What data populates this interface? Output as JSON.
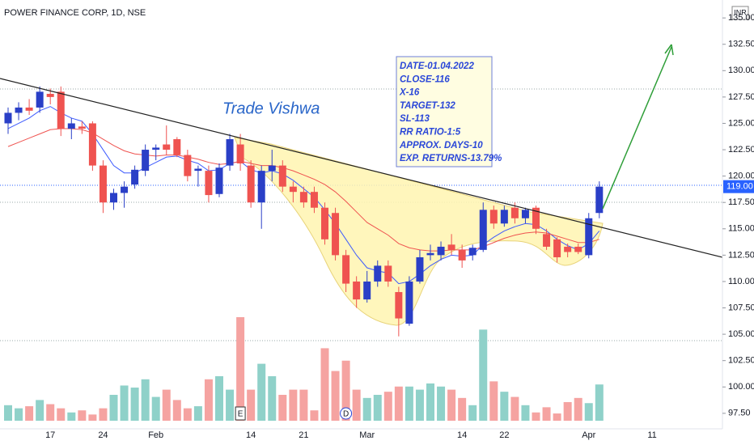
{
  "chart_data": {
    "type": "candlestick",
    "title": "POWER FINANCE CORP, 1D, NSE",
    "currency": "INR",
    "watermark": "Trade Vishwa",
    "note_lines": [
      "DATE-01.04.2022",
      "CLOSE-116",
      "X-16",
      "TARGET-132",
      "SL-113",
      "RR RATIO-1:5",
      "APPROX. DAYS-10",
      "EXP. RETURNS-13.79%"
    ],
    "categories": [
      null,
      null,
      null,
      null,
      "17",
      null,
      null,
      null,
      null,
      "24",
      null,
      null,
      null,
      null,
      "Feb",
      null,
      null,
      null,
      null,
      null,
      null,
      null,
      null,
      "14",
      null,
      null,
      null,
      null,
      "21",
      null,
      null,
      null,
      null,
      null,
      "Mar",
      null,
      null,
      null,
      null,
      null,
      null,
      null,
      null,
      "14",
      null,
      null,
      null,
      "22",
      null,
      null,
      null,
      null,
      null,
      null,
      null,
      "Apr",
      null,
      null,
      null,
      null,
      null,
      "11"
    ],
    "events": [
      null,
      null,
      null,
      null,
      null,
      null,
      null,
      null,
      null,
      null,
      null,
      null,
      null,
      null,
      null,
      null,
      null,
      null,
      null,
      null,
      null,
      null,
      "E",
      null,
      null,
      null,
      null,
      null,
      null,
      null,
      null,
      null,
      "D",
      null,
      null,
      null,
      null,
      null,
      null,
      null,
      null,
      null,
      null,
      null,
      null,
      null,
      null,
      null,
      null,
      null,
      null,
      null,
      null,
      null,
      null,
      null,
      null,
      null,
      null,
      null,
      null,
      null
    ],
    "open": [
      125.0,
      126.0,
      126.5,
      126.5,
      127.8,
      128.0,
      124.5,
      124.7,
      125.0,
      121.0,
      117.5,
      118.4,
      119.2,
      120.5,
      122.5,
      123.0,
      123.5,
      122.0,
      120.5,
      120.5,
      118.3,
      121.0,
      123.0,
      121.0,
      117.5,
      120.5,
      121.0,
      119.0,
      118.5,
      118.5,
      117.0,
      116.5,
      112.5,
      110.0,
      108.3,
      110.0,
      111.5,
      109.0,
      106.0,
      110.0,
      112.5,
      112.5,
      113.5,
      113.0,
      112.5,
      113.0,
      116.8,
      115.5,
      117.0,
      116.0,
      117.0,
      114.5,
      114.0,
      113.3,
      113.3,
      112.5,
      116.5,
      null,
      null,
      null,
      null,
      null
    ],
    "high": [
      126.5,
      127.0,
      127.3,
      128.5,
      128.3,
      128.5,
      125.5,
      125.2,
      125.2,
      121.5,
      118.8,
      119.5,
      121.0,
      123.0,
      123.0,
      124.8,
      123.7,
      122.5,
      121.0,
      121.0,
      121.2,
      124.0,
      124.0,
      121.5,
      121.0,
      122.5,
      121.5,
      119.5,
      119.0,
      119.0,
      117.5,
      117.0,
      113.0,
      110.5,
      111.0,
      112.0,
      112.0,
      109.5,
      110.5,
      113.0,
      113.5,
      113.8,
      114.5,
      113.5,
      113.5,
      117.5,
      117.2,
      117.2,
      117.5,
      117.0,
      117.2,
      115.0,
      114.2,
      113.6,
      113.6,
      116.5,
      119.5,
      null,
      null,
      null,
      null,
      null
    ],
    "low": [
      124.0,
      125.3,
      125.8,
      126.0,
      126.8,
      123.8,
      123.5,
      124.0,
      120.5,
      116.5,
      116.8,
      117.0,
      118.8,
      120.0,
      121.5,
      122.0,
      121.8,
      119.5,
      119.0,
      117.5,
      118.0,
      120.5,
      120.5,
      117.0,
      115.0,
      119.5,
      118.5,
      117.5,
      117.0,
      116.5,
      113.5,
      112.0,
      109.0,
      107.5,
      108.0,
      109.5,
      109.5,
      104.8,
      105.8,
      109.8,
      112.0,
      112.0,
      112.5,
      111.3,
      112.0,
      112.8,
      115.0,
      115.2,
      115.5,
      115.5,
      114.5,
      113.0,
      111.8,
      112.3,
      112.6,
      112.2,
      116.0,
      null,
      null,
      null,
      null,
      null
    ],
    "close": [
      126.0,
      126.5,
      126.2,
      128.0,
      127.5,
      124.5,
      125.0,
      124.5,
      121.0,
      117.5,
      118.4,
      119.0,
      120.6,
      122.5,
      122.7,
      122.5,
      122.0,
      120.0,
      120.7,
      118.2,
      120.8,
      123.5,
      121.2,
      117.5,
      120.5,
      121.0,
      119.0,
      118.5,
      117.5,
      117.0,
      114.0,
      112.5,
      109.8,
      108.3,
      110.0,
      111.5,
      110.0,
      106.5,
      110.0,
      112.3,
      112.7,
      113.3,
      113.0,
      112.0,
      113.2,
      116.8,
      115.5,
      116.8,
      116.0,
      116.8,
      115.0,
      113.3,
      112.3,
      112.8,
      112.8,
      116.0,
      119.0,
      null,
      null,
      null,
      null,
      null
    ],
    "volume": [
      15,
      12,
      14,
      20,
      16,
      12,
      8,
      10,
      6,
      12,
      25,
      34,
      32,
      40,
      23,
      30,
      20,
      12,
      14,
      40,
      43,
      30,
      100,
      30,
      55,
      43,
      25,
      30,
      30,
      10,
      70,
      48,
      58,
      30,
      22,
      25,
      28,
      33,
      33,
      30,
      36,
      33,
      30,
      22,
      15,
      88,
      38,
      28,
      23,
      15,
      8,
      13,
      7,
      18,
      22,
      17,
      35,
      null,
      null,
      null,
      null,
      null
    ],
    "volume_lim": [
      0,
      100
    ],
    "moving_averages": [
      {
        "color": "#3d5afe",
        "values": [
          124.5,
          125.0,
          125.5,
          126.2,
          126.6,
          126.0,
          125.5,
          125.2,
          124.0,
          122.5,
          121.0,
          120.3,
          120.3,
          120.8,
          121.3,
          121.8,
          121.9,
          121.5,
          121.2,
          120.5,
          120.6,
          121.2,
          121.4,
          120.6,
          120.3,
          120.5,
          120.2,
          119.6,
          118.8,
          118.0,
          116.8,
          115.5,
          114.0,
          112.5,
          111.3,
          111.0,
          110.8,
          109.8,
          110.0,
          110.7,
          111.5,
          112.1,
          112.5,
          112.4,
          112.5,
          113.5,
          114.2,
          114.8,
          115.2,
          115.5,
          115.4,
          114.8,
          114.0,
          113.4,
          113.0,
          113.6,
          114.8,
          null,
          null,
          null,
          null,
          null
        ]
      },
      {
        "color": "#ef5350",
        "values": [
          122.8,
          123.2,
          123.6,
          124.0,
          124.4,
          124.5,
          124.5,
          124.4,
          124.1,
          123.5,
          122.9,
          122.4,
          122.1,
          122.0,
          121.9,
          122.0,
          122.0,
          121.8,
          121.6,
          121.3,
          121.1,
          121.2,
          121.4,
          121.2,
          121.0,
          121.0,
          120.8,
          120.5,
          120.1,
          119.7,
          119.2,
          118.5,
          117.6,
          116.6,
          115.6,
          115.0,
          114.4,
          113.6,
          113.2,
          113.0,
          112.9,
          112.9,
          113.0,
          113.0,
          113.0,
          113.3,
          113.7,
          114.1,
          114.4,
          114.6,
          114.7,
          114.6,
          114.3,
          114.0,
          113.7,
          113.7,
          114.0,
          null,
          null,
          null,
          null,
          null
        ]
      }
    ],
    "up_color": "#2a3fc7",
    "down_color": "#ef5350",
    "volume_up_color": "#8fd1c9",
    "volume_down_color": "#f5a3a1",
    "last_price": 119,
    "last_price_label": "119.00",
    "ylim": [
      96.03,
      136.7
    ],
    "yticks": [
      {
        "value": 97.5,
        "label": "97.50"
      },
      {
        "value": 100,
        "label": "100.00"
      },
      {
        "value": 102.5,
        "label": "102.50"
      },
      {
        "value": 105,
        "label": "105.00"
      },
      {
        "value": 107.5,
        "label": "107.50"
      },
      {
        "value": 110,
        "label": "110.00"
      },
      {
        "value": 112.5,
        "label": "112.50"
      },
      {
        "value": 115,
        "label": "115.00"
      },
      {
        "value": 117.5,
        "label": "117.50"
      },
      {
        "value": 120,
        "label": "120.00"
      },
      {
        "value": 122.5,
        "label": "122.50"
      },
      {
        "value": 125,
        "label": "125.00"
      },
      {
        "value": 127.5,
        "label": "127.50"
      },
      {
        "value": 130,
        "label": "130.00"
      },
      {
        "value": 132.5,
        "label": "132.50"
      },
      {
        "value": 135,
        "label": "135.00"
      }
    ]
  }
}
